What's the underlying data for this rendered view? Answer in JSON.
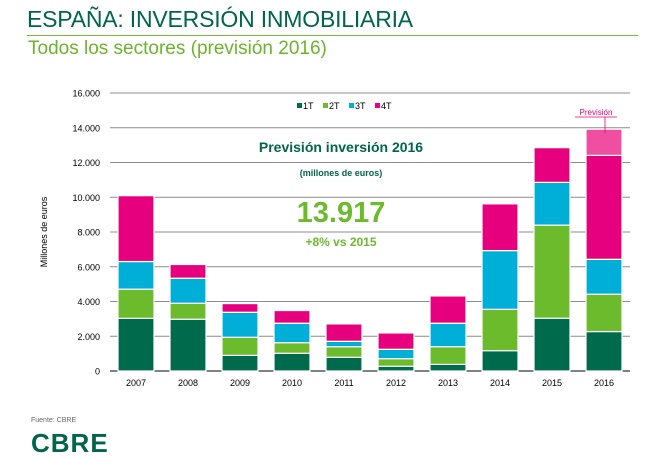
{
  "header": {
    "title": "ESPAÑA: INVERSIÓN INMOBILIARIA",
    "subtitle": "Todos los sectores (previsión 2016)"
  },
  "footer": {
    "source": "Fuente: CBRE",
    "logo": "CBRE"
  },
  "annotation": {
    "heading": "Previsión inversión 2016",
    "unit_note": "(millones de euros)",
    "total": "13.917",
    "change": "+8% vs 2015",
    "forecast_label": "Previsión"
  },
  "chart_data": {
    "type": "bar",
    "stacked": true,
    "title": "",
    "xlabel": "",
    "ylabel": "Millones de euros",
    "ylim": [
      0,
      16000
    ],
    "yticks": [
      0,
      2000,
      4000,
      6000,
      8000,
      10000,
      12000,
      14000,
      16000
    ],
    "ytick_labels": [
      "0",
      "2.000",
      "4.000",
      "6.000",
      "8.000",
      "10.000",
      "12.000",
      "14.000",
      "16.000"
    ],
    "grid": true,
    "legend_position": "top-center",
    "categories": [
      "2007",
      "2008",
      "2009",
      "2010",
      "2011",
      "2012",
      "2013",
      "2014",
      "2015",
      "2016"
    ],
    "series": [
      {
        "name": "1T",
        "color": "#006a4d",
        "values": [
          3030,
          2980,
          900,
          1020,
          790,
          270,
          380,
          1170,
          3035,
          2270
        ]
      },
      {
        "name": "2T",
        "color": "#6cbb2c",
        "values": [
          1680,
          920,
          1040,
          610,
          610,
          440,
          1020,
          2380,
          5360,
          2150
        ]
      },
      {
        "name": "3T",
        "color": "#00afd8",
        "values": [
          1590,
          1440,
          1440,
          1120,
          310,
          540,
          1350,
          3380,
          2460,
          2010
        ]
      },
      {
        "name": "4T",
        "color": "#e6007e",
        "values": [
          3790,
          790,
          500,
          730,
          1000,
          940,
          1570,
          2690,
          2000,
          5980
        ]
      },
      {
        "color": "#f04ea0",
        "values": [
          0,
          0,
          0,
          0,
          0,
          0,
          0,
          0,
          0,
          1507
        ]
      }
    ]
  }
}
